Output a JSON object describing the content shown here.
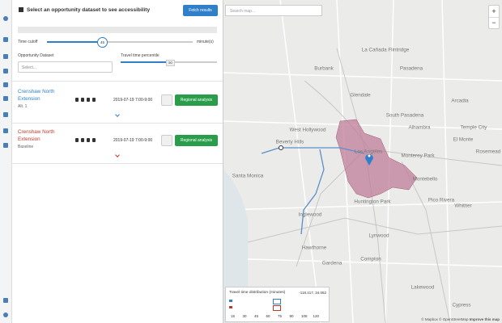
{
  "header": {
    "title": "Select an opportunity dataset to see accessibility",
    "fetch_button": "Fetch results"
  },
  "controls": {
    "time_cutoff_label": "Time cutoff",
    "time_cutoff_value": 45,
    "time_cutoff_unit": "minute(s)",
    "dataset_label": "Opportunity Dataset",
    "dataset_placeholder": "Select...",
    "percentile_label": "Travel time percentile",
    "percentile_value": 50
  },
  "projects": [
    {
      "title": "Crenshaw North Extension",
      "variant": "Alt. 1",
      "date": "2019-07-19",
      "time": "7:00-9:00",
      "button": "Regional analysis"
    },
    {
      "title": "Crenshaw North Extension",
      "variant": "Baseline",
      "date": "2019-07-19",
      "time": "7:00-9:00",
      "button": "Regional analysis"
    }
  ],
  "map": {
    "search_placeholder": "Search map...",
    "zoom_in": "+",
    "zoom_out": "−",
    "labels": [
      "Burbank",
      "La Cañada Flintridge",
      "Glendale",
      "Pasadena",
      "South Pasadena",
      "Arcadia",
      "Alhambra",
      "Temple City",
      "West Hollywood",
      "El Monte",
      "Beverly Hills",
      "Los Angeles",
      "Monterey Park",
      "Rosemead",
      "Santa Monica",
      "Montebello",
      "Huntington Park",
      "Pico Rivera",
      "Inglewood",
      "Whittier",
      "Lynwood",
      "Hawthorne",
      "Gardena",
      "Compton",
      "Lakewood",
      "Cypress"
    ],
    "distribution": {
      "title": "Travel time distribution (minutes)",
      "coordinates": "-118.417, 34.062",
      "ticks": [
        15,
        30,
        45,
        60,
        75,
        90,
        105,
        120
      ]
    },
    "attribution": {
      "mapbox": "© Mapbox",
      "osm": "© OpenStreetMap",
      "improve": "Improve this map"
    }
  }
}
